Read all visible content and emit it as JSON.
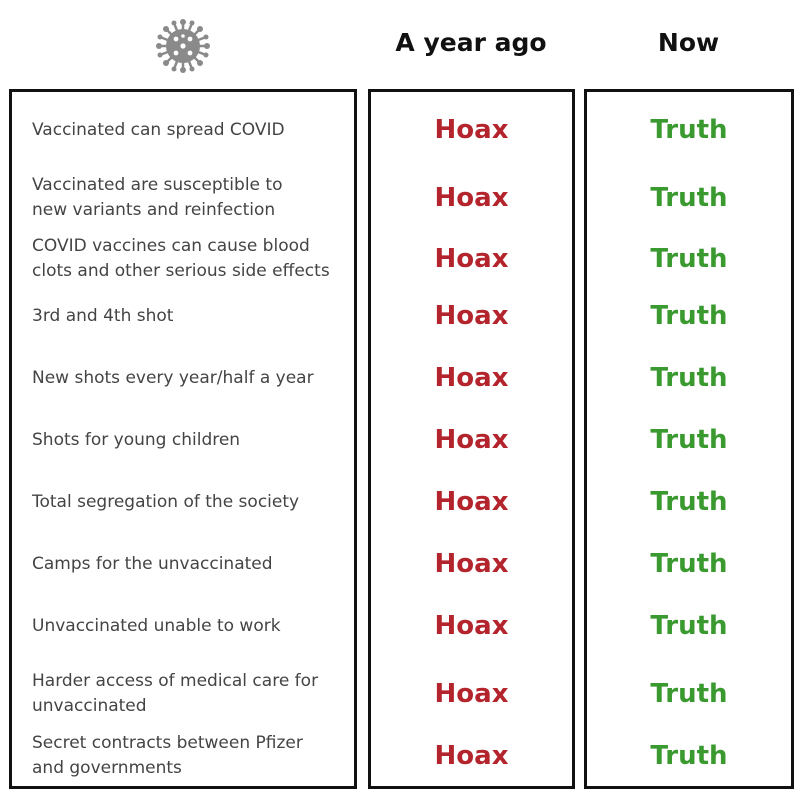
{
  "header": {
    "icon": "virus-icon",
    "col_past": "A year ago",
    "col_now": "Now"
  },
  "colors": {
    "hoax": "#b3242c",
    "truth": "#3a9a30",
    "border": "#111111",
    "claim_text": "#444444"
  },
  "rows": [
    {
      "claim": "Vaccinated can spread COVID",
      "past": "Hoax",
      "now": "Truth"
    },
    {
      "claim": "Vaccinated are susceptible to new variants and reinfection",
      "past": "Hoax",
      "now": "Truth"
    },
    {
      "claim": "COVID vaccines can cause blood clots and other serious side effects",
      "past": "Hoax",
      "now": "Truth"
    },
    {
      "claim": "3rd and 4th shot",
      "past": "Hoax",
      "now": "Truth"
    },
    {
      "claim": "New shots every year/half a year",
      "past": "Hoax",
      "now": "Truth"
    },
    {
      "claim": "Shots for young children",
      "past": "Hoax",
      "now": "Truth"
    },
    {
      "claim": "Total segregation of the society",
      "past": "Hoax",
      "now": "Truth"
    },
    {
      "claim": "Camps for the unvaccinated",
      "past": "Hoax",
      "now": "Truth"
    },
    {
      "claim": "Unvaccinated unable to work",
      "past": "Hoax",
      "now": "Truth"
    },
    {
      "claim": "Harder access of medical care for unvaccinated",
      "past": "Hoax",
      "now": "Truth"
    },
    {
      "claim": "Secret contracts between Pfizer and governments",
      "past": "Hoax",
      "now": "Truth"
    }
  ]
}
